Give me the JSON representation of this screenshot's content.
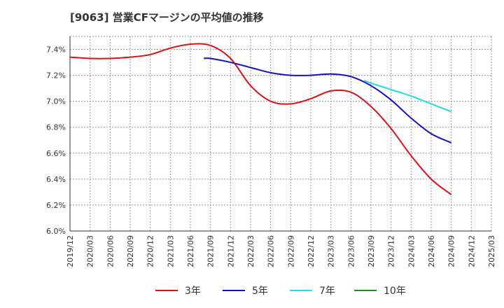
{
  "chart_data": {
    "type": "line",
    "title": "[9063]  営業CFマージンの平均値の推移",
    "xlabel": "",
    "ylabel": "",
    "ylim": [
      6.0,
      7.5
    ],
    "x_ticks": [
      "2019/12",
      "2020/03",
      "2020/06",
      "2020/09",
      "2020/12",
      "2021/03",
      "2021/06",
      "2021/09",
      "2021/12",
      "2022/03",
      "2022/06",
      "2022/09",
      "2022/12",
      "2023/03",
      "2023/06",
      "2023/09",
      "2023/12",
      "2024/03",
      "2024/06",
      "2024/09",
      "2024/12",
      "2025/03"
    ],
    "y_ticks": [
      "6.0%",
      "6.2%",
      "6.4%",
      "6.6%",
      "6.8%",
      "7.0%",
      "7.2%",
      "7.4%"
    ],
    "y_tick_values": [
      6.0,
      6.2,
      6.4,
      6.6,
      6.8,
      7.0,
      7.2,
      7.4
    ],
    "grid": true,
    "legend_position": "bottom",
    "series": [
      {
        "name": "3年",
        "color": "#dd1111",
        "points": [
          [
            "2019/12",
            7.34
          ],
          [
            "2020/03",
            7.33
          ],
          [
            "2020/06",
            7.33
          ],
          [
            "2020/09",
            7.34
          ],
          [
            "2020/12",
            7.36
          ],
          [
            "2021/03",
            7.41
          ],
          [
            "2021/06",
            7.44
          ],
          [
            "2021/09",
            7.43
          ],
          [
            "2021/12",
            7.33
          ],
          [
            "2022/03",
            7.12
          ],
          [
            "2022/06",
            7.0
          ],
          [
            "2022/09",
            6.98
          ],
          [
            "2022/12",
            7.02
          ],
          [
            "2023/03",
            7.08
          ],
          [
            "2023/06",
            7.07
          ],
          [
            "2023/09",
            6.96
          ],
          [
            "2023/12",
            6.79
          ],
          [
            "2024/03",
            6.58
          ],
          [
            "2024/06",
            6.4
          ],
          [
            "2024/09",
            6.28
          ]
        ]
      },
      {
        "name": "5年",
        "color": "#1111cc",
        "points": [
          [
            "2021/08",
            7.33
          ],
          [
            "2021/09",
            7.33
          ],
          [
            "2021/12",
            7.3
          ],
          [
            "2022/03",
            7.26
          ],
          [
            "2022/06",
            7.22
          ],
          [
            "2022/09",
            7.2
          ],
          [
            "2022/12",
            7.2
          ],
          [
            "2023/03",
            7.21
          ],
          [
            "2023/06",
            7.19
          ],
          [
            "2023/09",
            7.12
          ],
          [
            "2023/12",
            7.01
          ],
          [
            "2024/03",
            6.87
          ],
          [
            "2024/06",
            6.75
          ],
          [
            "2024/09",
            6.68
          ]
        ]
      },
      {
        "name": "7年",
        "color": "#22dddd",
        "points": [
          [
            "2023/08",
            7.16
          ],
          [
            "2023/09",
            7.14
          ],
          [
            "2023/12",
            7.09
          ],
          [
            "2024/03",
            7.04
          ],
          [
            "2024/06",
            6.98
          ],
          [
            "2024/09",
            6.92
          ]
        ]
      },
      {
        "name": "10年",
        "color": "#228822",
        "points": []
      }
    ]
  }
}
